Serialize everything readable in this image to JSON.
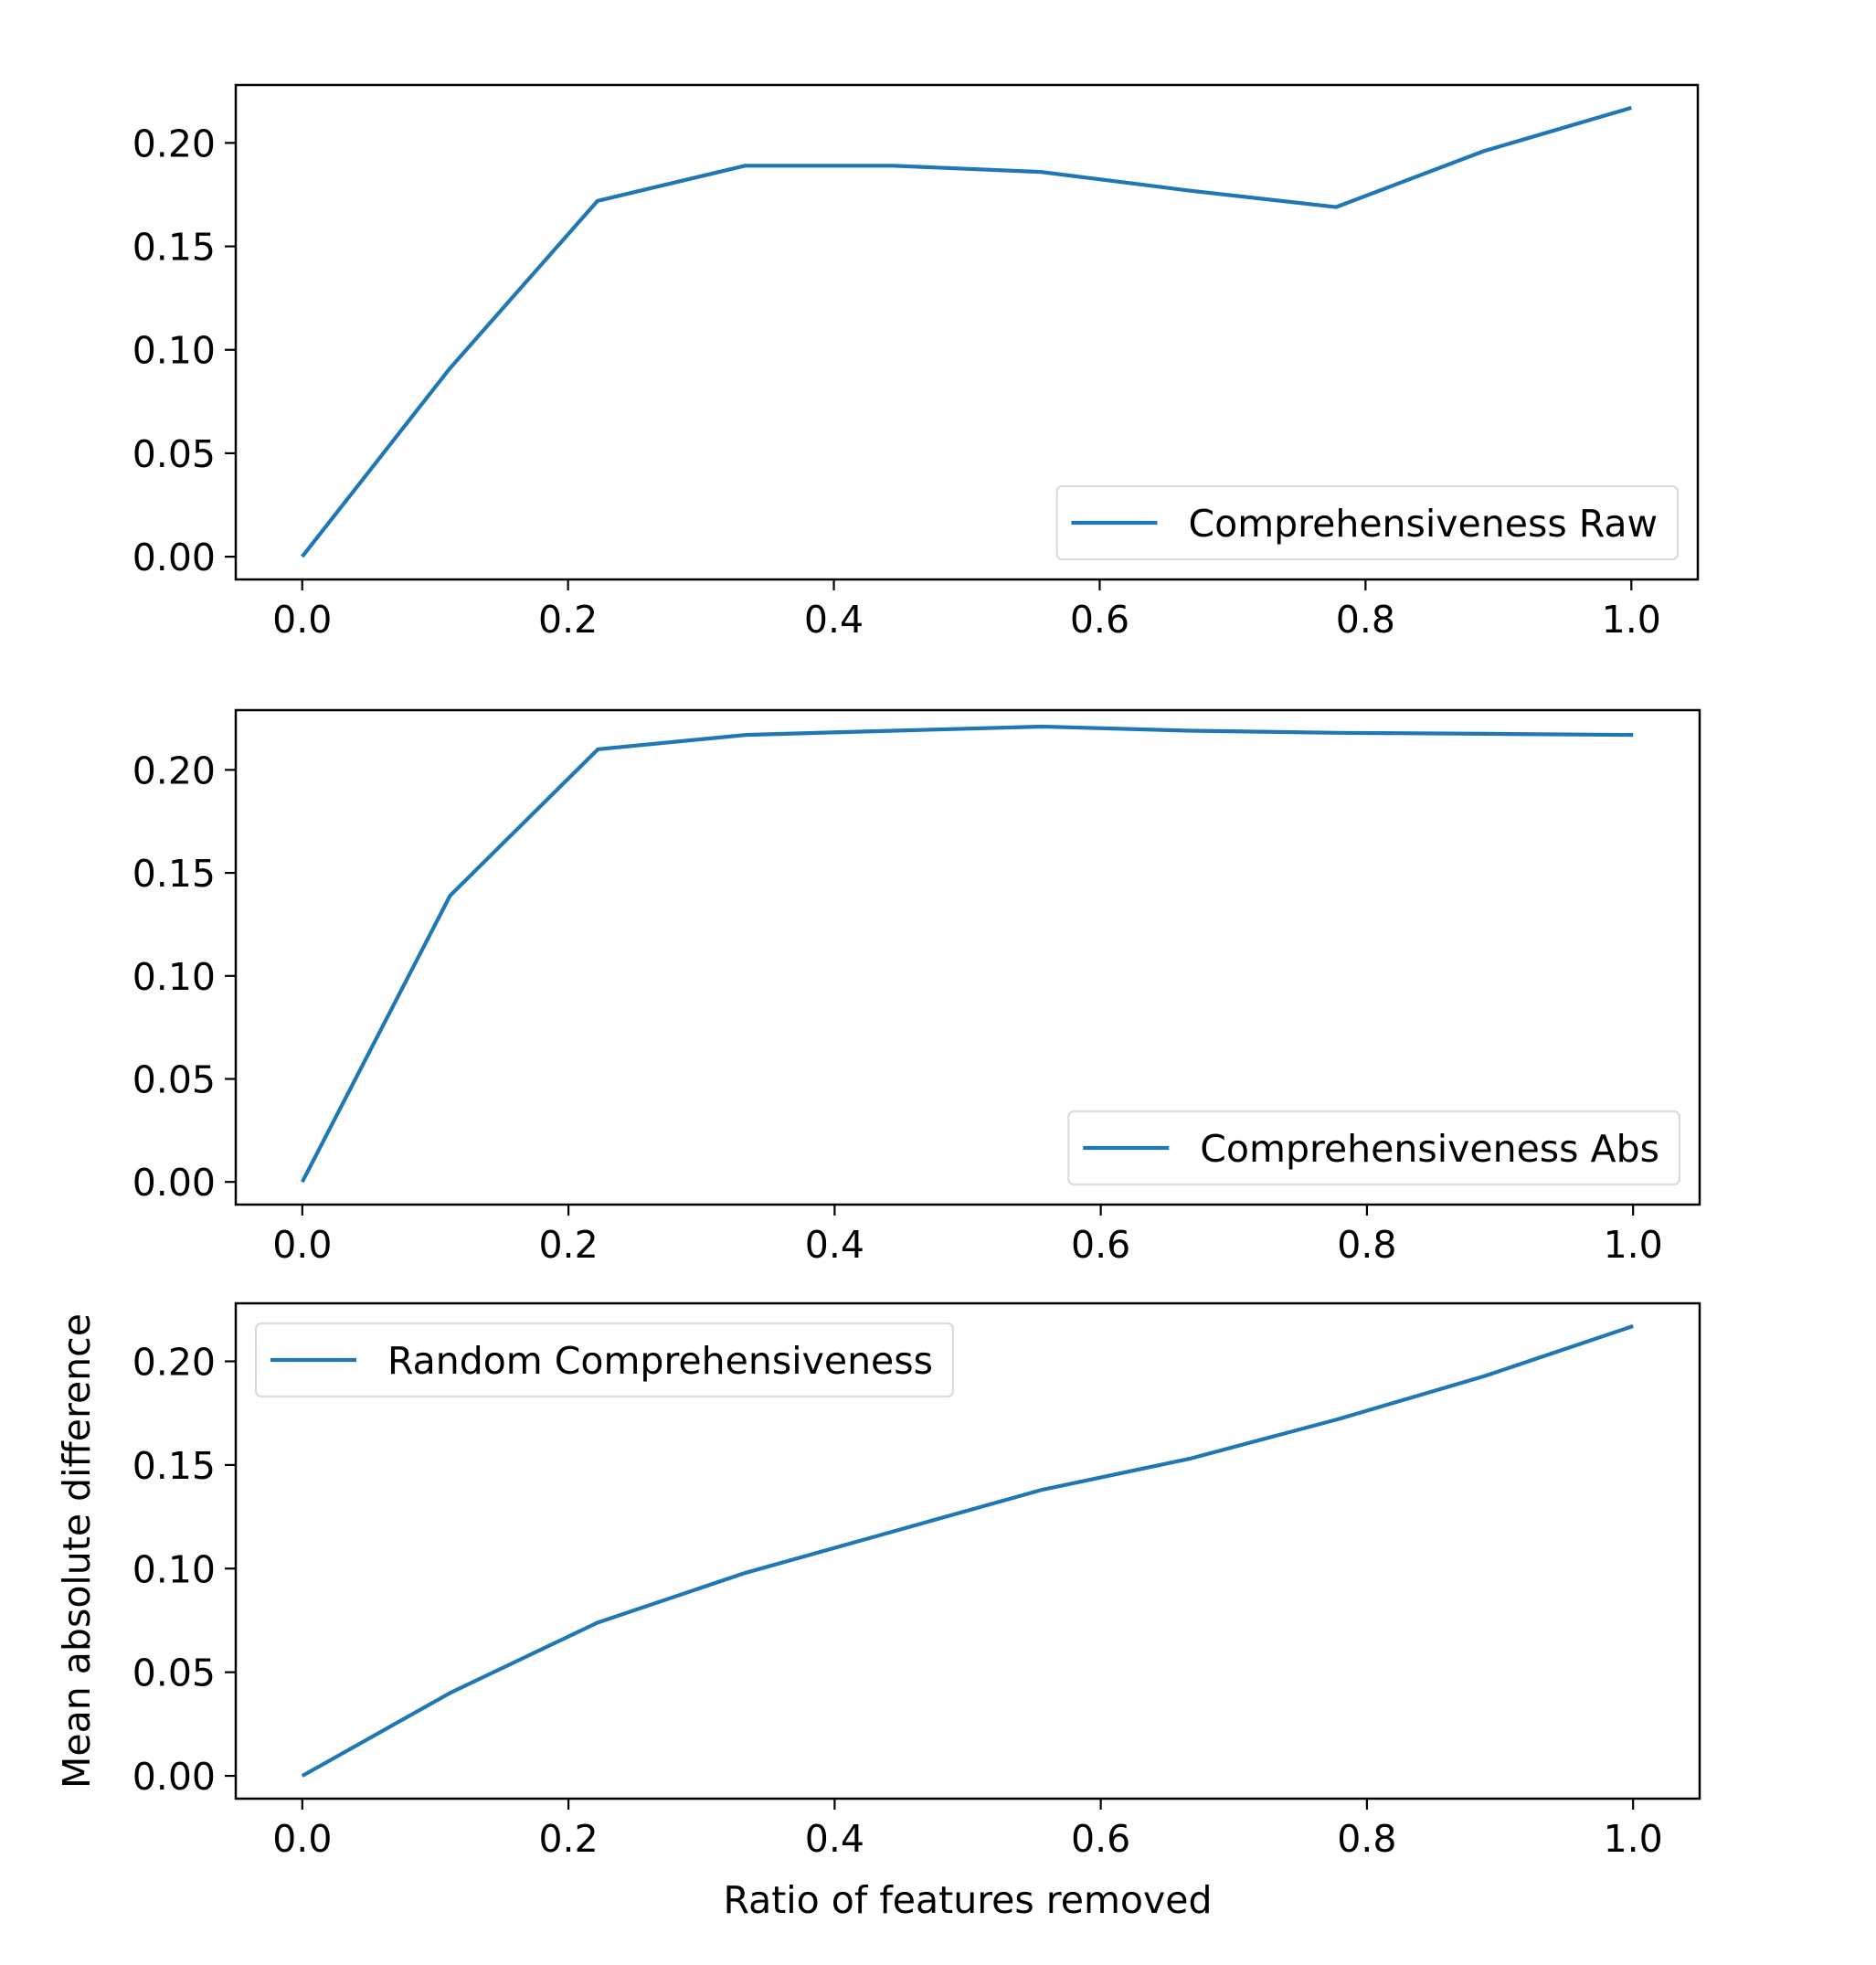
{
  "chart_data": [
    {
      "type": "line",
      "title": "",
      "xlabel": "",
      "ylabel": "",
      "xlim": [
        -0.05,
        1.05
      ],
      "ylim": [
        -0.011,
        0.228
      ],
      "xticks": [
        "0.0",
        "0.2",
        "0.4",
        "0.6",
        "0.8",
        "1.0"
      ],
      "yticks": [
        "0.00",
        "0.05",
        "0.10",
        "0.15",
        "0.20"
      ],
      "legend_position": "lower-right",
      "series": [
        {
          "name": "Comprehensiveness Raw",
          "color": "#1f77b4",
          "x": [
            0.0,
            0.1111,
            0.2222,
            0.3333,
            0.4444,
            0.5556,
            0.6667,
            0.7778,
            0.8889,
            1.0
          ],
          "y": [
            0.0,
            0.091,
            0.172,
            0.189,
            0.189,
            0.186,
            0.177,
            0.169,
            0.196,
            0.217
          ]
        }
      ]
    },
    {
      "type": "line",
      "title": "",
      "xlabel": "",
      "ylabel": "",
      "xlim": [
        -0.05,
        1.05
      ],
      "ylim": [
        -0.011,
        0.229
      ],
      "xticks": [
        "0.0",
        "0.2",
        "0.4",
        "0.6",
        "0.8",
        "1.0"
      ],
      "yticks": [
        "0.00",
        "0.05",
        "0.10",
        "0.15",
        "0.20"
      ],
      "legend_position": "lower-right",
      "series": [
        {
          "name": "Comprehensiveness Abs",
          "color": "#1f77b4",
          "x": [
            0.0,
            0.1111,
            0.2222,
            0.3333,
            0.4444,
            0.5556,
            0.6667,
            0.7778,
            0.8889,
            1.0
          ],
          "y": [
            0.0,
            0.139,
            0.21,
            0.217,
            0.219,
            0.221,
            0.219,
            0.218,
            0.2175,
            0.217
          ]
        }
      ]
    },
    {
      "type": "line",
      "title": "",
      "xlabel": "Ratio of features removed",
      "ylabel": "Mean absolute difference",
      "xlim": [
        -0.05,
        1.05
      ],
      "ylim": [
        -0.011,
        0.228
      ],
      "xticks": [
        "0.0",
        "0.2",
        "0.4",
        "0.6",
        "0.8",
        "1.0"
      ],
      "yticks": [
        "0.00",
        "0.05",
        "0.10",
        "0.15",
        "0.20"
      ],
      "legend_position": "upper-left",
      "series": [
        {
          "name": "Random Comprehensiveness",
          "color": "#1f77b4",
          "x": [
            0.0,
            0.1111,
            0.2222,
            0.3333,
            0.4444,
            0.5556,
            0.6667,
            0.7778,
            0.8889,
            1.0
          ],
          "y": [
            0.0,
            0.04,
            0.074,
            0.098,
            0.118,
            0.138,
            0.153,
            0.172,
            0.193,
            0.217
          ]
        }
      ]
    }
  ]
}
